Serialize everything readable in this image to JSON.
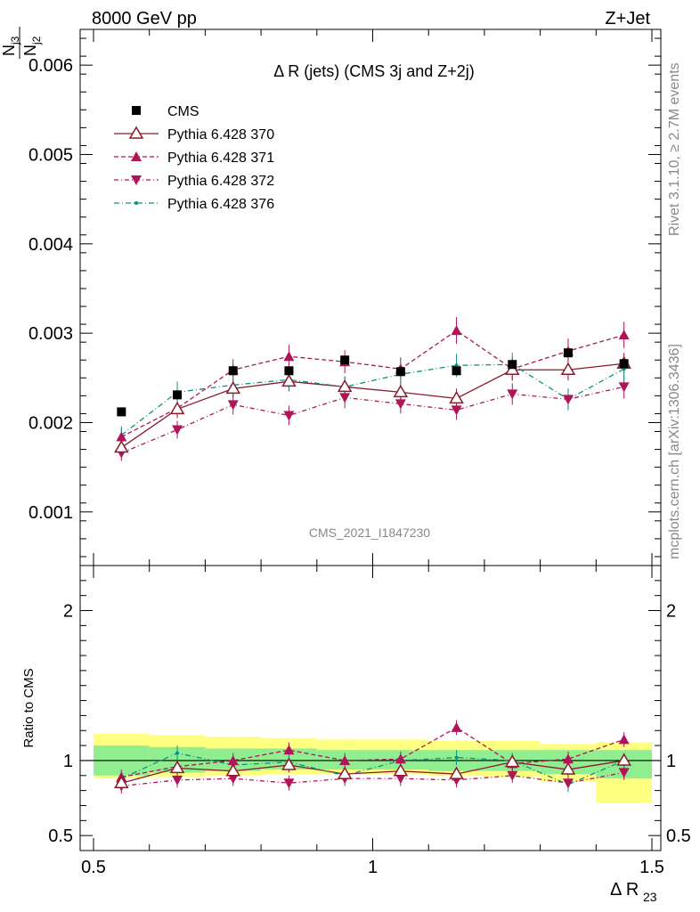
{
  "header": {
    "left": "8000 GeV pp",
    "right": "Z+Jet"
  },
  "side_text": {
    "rivet": "Rivet 3.1.10, ≥ 2.7M events",
    "mcplots": "mcplots.cern.ch [arXiv:1306.3436]"
  },
  "colors": {
    "cms": "#000000",
    "p370": "#8b1a2b",
    "p371": "#b0155a",
    "p372": "#b0155a",
    "p376": "#109080",
    "band_inner": "#90ee90",
    "band_outer": "#ffff80"
  },
  "chart_data": [
    {
      "type": "line",
      "title": "Δ R (jets) (CMS 3j and Z+2j)",
      "ylabel_num": "N",
      "ylabel_num_sub": "j3",
      "ylabel_den": "N",
      "ylabel_den_sub": "j2",
      "watermark": "CMS_2021_I1847230",
      "xlim": [
        0.5,
        1.5
      ],
      "ylim": [
        0.0004,
        0.0064
      ],
      "yticks": [
        0.001,
        0.002,
        0.003,
        0.004,
        0.005,
        0.006
      ],
      "ytick_labels": [
        "0.001",
        "0.002",
        "0.003",
        "0.004",
        "0.005",
        "0.006"
      ],
      "x": [
        0.55,
        0.65,
        0.75,
        0.85,
        0.95,
        1.05,
        1.15,
        1.25,
        1.35,
        1.45
      ],
      "series": [
        {
          "name": "CMS",
          "style": "cms",
          "values": [
            0.00212,
            0.00231,
            0.00258,
            0.00258,
            0.0027,
            0.00257,
            0.00258,
            0.00265,
            0.00278,
            0.00266
          ]
        },
        {
          "name": "Pythia 6.428 370",
          "style": "p370",
          "values": [
            0.00172,
            0.00215,
            0.00238,
            0.00246,
            0.0024,
            0.00234,
            0.00227,
            0.00259,
            0.00259,
            0.00266
          ],
          "err": [
            9e-05,
            0.0001,
            0.0001,
            0.00011,
            0.00011,
            0.00011,
            0.00011,
            0.00012,
            0.00012,
            0.00012
          ]
        },
        {
          "name": "Pythia 6.428 371",
          "style": "p371",
          "values": [
            0.00184,
            0.00216,
            0.00259,
            0.00274,
            0.00268,
            0.0026,
            0.00303,
            0.0026,
            0.0028,
            0.00298
          ],
          "err": [
            0.0001,
            0.0001,
            0.00012,
            0.00013,
            0.00013,
            0.00013,
            0.00015,
            0.00013,
            0.00014,
            0.00015
          ]
        },
        {
          "name": "Pythia 6.428 372",
          "style": "p372",
          "values": [
            0.00166,
            0.00192,
            0.0022,
            0.00208,
            0.00228,
            0.00221,
            0.00214,
            0.00232,
            0.00226,
            0.0024
          ],
          "err": [
            9e-05,
            0.0001,
            0.00011,
            0.00011,
            0.00012,
            0.00011,
            0.00011,
            0.00012,
            0.00012,
            0.00013
          ]
        },
        {
          "name": "Pythia 6.428 376",
          "style": "p376",
          "values": [
            0.00186,
            0.00234,
            0.00242,
            0.00248,
            0.0024,
            0.00254,
            0.00264,
            0.00265,
            0.00226,
            0.0026
          ],
          "err": [
            0.0001,
            0.00012,
            0.00012,
            0.00012,
            0.00012,
            0.00013,
            0.00013,
            0.00013,
            0.00012,
            0.00013
          ]
        }
      ],
      "legend_placement": "top-left"
    },
    {
      "type": "line",
      "ylabel": "Ratio to CMS",
      "xlabel": "Δ R",
      "xlabel_sub": "23",
      "xlim": [
        0.5,
        1.5
      ],
      "ylim": [
        0.4,
        2.3
      ],
      "yticks": [
        0.5,
        1,
        2
      ],
      "ytick_labels": [
        "0.5",
        "1",
        "2"
      ],
      "xticks": [
        0.5,
        1,
        1.5
      ],
      "xtick_labels": [
        "0.5",
        "1",
        "1.5"
      ],
      "x": [
        0.55,
        0.65,
        0.75,
        0.85,
        0.95,
        1.05,
        1.15,
        1.25,
        1.35,
        1.45
      ],
      "bins": [
        [
          0.5,
          0.6
        ],
        [
          0.6,
          0.7
        ],
        [
          0.7,
          0.8
        ],
        [
          0.8,
          0.9
        ],
        [
          0.9,
          1.0
        ],
        [
          1.0,
          1.1
        ],
        [
          1.1,
          1.2
        ],
        [
          1.2,
          1.3
        ],
        [
          1.3,
          1.4
        ],
        [
          1.4,
          1.5
        ]
      ],
      "band_inner": [
        [
          0.9,
          1.1
        ],
        [
          0.92,
          1.09
        ],
        [
          0.93,
          1.08
        ],
        [
          0.94,
          1.08
        ],
        [
          0.94,
          1.07
        ],
        [
          0.94,
          1.07
        ],
        [
          0.93,
          1.07
        ],
        [
          0.93,
          1.07
        ],
        [
          0.91,
          1.07
        ],
        [
          0.88,
          1.07
        ]
      ],
      "band_outer": [
        [
          0.88,
          1.18
        ],
        [
          0.89,
          1.17
        ],
        [
          0.9,
          1.16
        ],
        [
          0.91,
          1.15
        ],
        [
          0.91,
          1.14
        ],
        [
          0.91,
          1.14
        ],
        [
          0.9,
          1.13
        ],
        [
          0.89,
          1.13
        ],
        [
          0.86,
          1.11
        ],
        [
          0.72,
          1.12
        ]
      ],
      "series": [
        {
          "name": "Pythia 6.428 370",
          "style": "p370",
          "values": [
            0.85,
            0.95,
            0.93,
            0.97,
            0.91,
            0.93,
            0.91,
            0.99,
            0.94,
            1.0
          ]
        },
        {
          "name": "Pythia 6.428 371",
          "style": "p371",
          "values": [
            0.89,
            0.96,
            1.0,
            1.07,
            1.0,
            1.01,
            1.22,
            0.98,
            1.01,
            1.14
          ]
        },
        {
          "name": "Pythia 6.428 372",
          "style": "p372",
          "values": [
            0.83,
            0.87,
            0.88,
            0.85,
            0.88,
            0.88,
            0.87,
            0.9,
            0.85,
            0.92
          ]
        },
        {
          "name": "Pythia 6.428 376",
          "style": "p376",
          "values": [
            0.88,
            1.05,
            0.97,
            0.99,
            0.9,
            1.0,
            1.02,
            1.0,
            0.84,
            1.0
          ]
        }
      ]
    }
  ]
}
